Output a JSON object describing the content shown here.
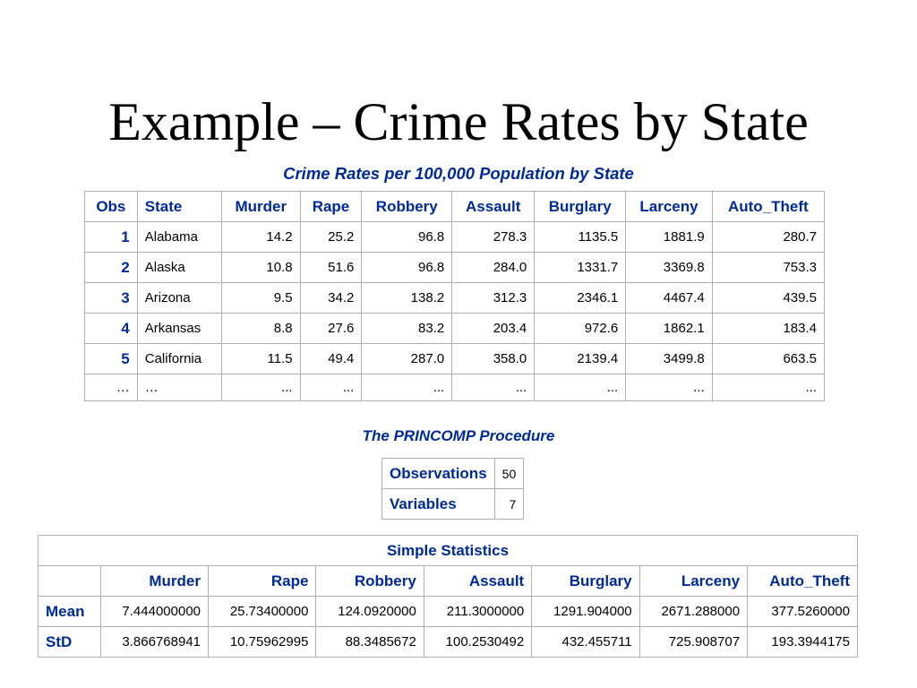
{
  "slide": {
    "title": "Example – Crime Rates by State"
  },
  "crime_table": {
    "caption": "Crime Rates per 100,000 Population by State",
    "headers": [
      "Obs",
      "State",
      "Murder",
      "Rape",
      "Robbery",
      "Assault",
      "Burglary",
      "Larceny",
      "Auto_Theft"
    ],
    "rows": [
      [
        "1",
        "Alabama",
        "14.2",
        "25.2",
        "96.8",
        "278.3",
        "1135.5",
        "1881.9",
        "280.7"
      ],
      [
        "2",
        "Alaska",
        "10.8",
        "51.6",
        "96.8",
        "284.0",
        "1331.7",
        "3369.8",
        "753.3"
      ],
      [
        "3",
        "Arizona",
        "9.5",
        "34.2",
        "138.2",
        "312.3",
        "2346.1",
        "4467.4",
        "439.5"
      ],
      [
        "4",
        "Arkansas",
        "8.8",
        "27.6",
        "83.2",
        "203.4",
        "972.6",
        "1862.1",
        "183.4"
      ],
      [
        "5",
        "California",
        "11.5",
        "49.4",
        "287.0",
        "358.0",
        "2139.4",
        "3499.8",
        "663.5"
      ],
      [
        "…",
        "…",
        "...",
        "...",
        "...",
        "...",
        "...",
        "...",
        "..."
      ]
    ]
  },
  "princomp": {
    "caption": "The PRINCOMP Procedure",
    "rows": [
      [
        "Observations",
        "50"
      ],
      [
        "Variables",
        "7"
      ]
    ]
  },
  "simple_stats": {
    "title": "Simple Statistics",
    "headers": [
      "",
      "Murder",
      "Rape",
      "Robbery",
      "Assault",
      "Burglary",
      "Larceny",
      "Auto_Theft"
    ],
    "rows": [
      [
        "Mean",
        "7.444000000",
        "25.73400000",
        "124.0920000",
        "211.3000000",
        "1291.904000",
        "2671.288000",
        "377.5260000"
      ],
      [
        "StD",
        "3.866768941",
        "10.75962995",
        "88.3485672",
        "100.2530492",
        "432.455711",
        "725.908707",
        "193.3944175"
      ]
    ]
  }
}
